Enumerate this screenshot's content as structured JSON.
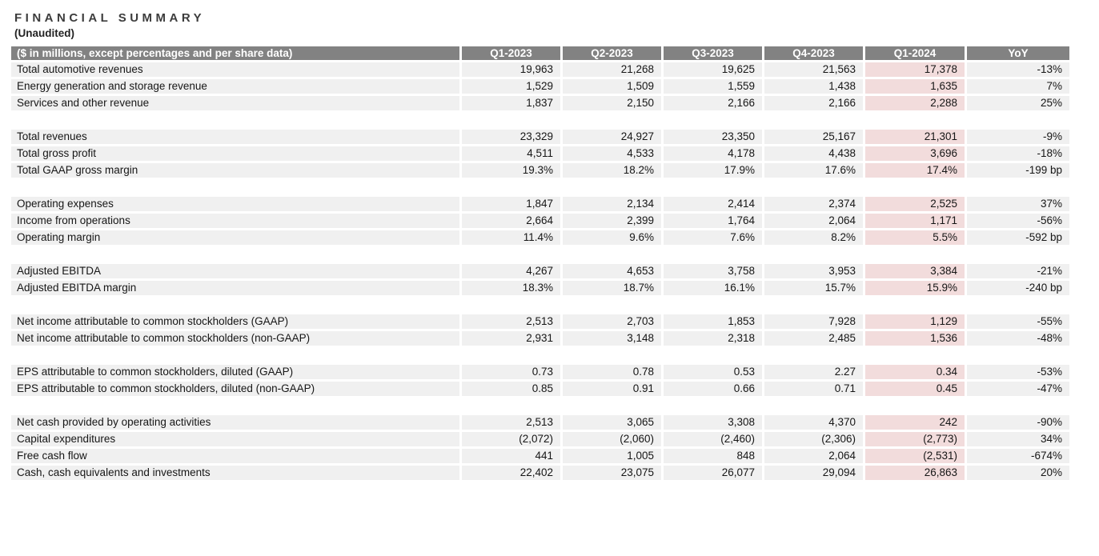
{
  "page": {
    "title": "FINANCIAL SUMMARY",
    "subtitle": "(Unaudited)"
  },
  "colors": {
    "header_bg": "#828282",
    "header_text": "#ffffff",
    "row_bg": "#f0f0f0",
    "highlight_bg": "#f2dcdc",
    "title_text": "#3c3c3c"
  },
  "table": {
    "caption": "($ in millions, except percentages and per share data)",
    "columns": [
      "Q1-2023",
      "Q2-2023",
      "Q3-2023",
      "Q4-2023",
      "Q1-2024",
      "YoY"
    ],
    "highlight_column": "Q1-2024",
    "highlight_column_index": 4,
    "sections": [
      {
        "rows": [
          {
            "label": "Total automotive revenues",
            "values": [
              "19,963",
              "21,268",
              "19,625",
              "21,563",
              "17,378",
              "-13%"
            ]
          },
          {
            "label": "Energy generation and storage revenue",
            "values": [
              "1,529",
              "1,509",
              "1,559",
              "1,438",
              "1,635",
              "7%"
            ]
          },
          {
            "label": "Services and other revenue",
            "values": [
              "1,837",
              "2,150",
              "2,166",
              "2,166",
              "2,288",
              "25%"
            ]
          }
        ]
      },
      {
        "rows": [
          {
            "label": "Total revenues",
            "values": [
              "23,329",
              "24,927",
              "23,350",
              "25,167",
              "21,301",
              "-9%"
            ]
          },
          {
            "label": "Total gross profit",
            "values": [
              "4,511",
              "4,533",
              "4,178",
              "4,438",
              "3,696",
              "-18%"
            ]
          },
          {
            "label": "Total GAAP gross margin",
            "values": [
              "19.3%",
              "18.2%",
              "17.9%",
              "17.6%",
              "17.4%",
              "-199 bp"
            ]
          }
        ]
      },
      {
        "rows": [
          {
            "label": "Operating expenses",
            "values": [
              "1,847",
              "2,134",
              "2,414",
              "2,374",
              "2,525",
              "37%"
            ]
          },
          {
            "label": "Income from operations",
            "values": [
              "2,664",
              "2,399",
              "1,764",
              "2,064",
              "1,171",
              "-56%"
            ]
          },
          {
            "label": "Operating margin",
            "values": [
              "11.4%",
              "9.6%",
              "7.6%",
              "8.2%",
              "5.5%",
              "-592 bp"
            ]
          }
        ]
      },
      {
        "rows": [
          {
            "label": "Adjusted EBITDA",
            "values": [
              "4,267",
              "4,653",
              "3,758",
              "3,953",
              "3,384",
              "-21%"
            ]
          },
          {
            "label": "Adjusted EBITDA margin",
            "values": [
              "18.3%",
              "18.7%",
              "16.1%",
              "15.7%",
              "15.9%",
              "-240 bp"
            ]
          }
        ]
      },
      {
        "rows": [
          {
            "label": "Net income attributable to common stockholders (GAAP)",
            "values": [
              "2,513",
              "2,703",
              "1,853",
              "7,928",
              "1,129",
              "-55%"
            ]
          },
          {
            "label": "Net income attributable to common stockholders (non-GAAP)",
            "values": [
              "2,931",
              "3,148",
              "2,318",
              "2,485",
              "1,536",
              "-48%"
            ]
          }
        ]
      },
      {
        "rows": [
          {
            "label": "EPS attributable to common stockholders, diluted (GAAP)",
            "values": [
              "0.73",
              "0.78",
              "0.53",
              "2.27",
              "0.34",
              "-53%"
            ]
          },
          {
            "label": "EPS attributable to common stockholders, diluted (non-GAAP)",
            "values": [
              "0.85",
              "0.91",
              "0.66",
              "0.71",
              "0.45",
              "-47%"
            ]
          }
        ]
      },
      {
        "rows": [
          {
            "label": "Net cash provided by operating activities",
            "values": [
              "2,513",
              "3,065",
              "3,308",
              "4,370",
              "242",
              "-90%"
            ]
          },
          {
            "label": "Capital expenditures",
            "values": [
              "(2,072)",
              "(2,060)",
              "(2,460)",
              "(2,306)",
              "(2,773)",
              "34%"
            ]
          },
          {
            "label": "Free cash flow",
            "values": [
              "441",
              "1,005",
              "848",
              "2,064",
              "(2,531)",
              "-674%"
            ]
          },
          {
            "label": "Cash, cash equivalents and investments",
            "values": [
              "22,402",
              "23,075",
              "26,077",
              "29,094",
              "26,863",
              "20%"
            ]
          }
        ]
      }
    ]
  }
}
